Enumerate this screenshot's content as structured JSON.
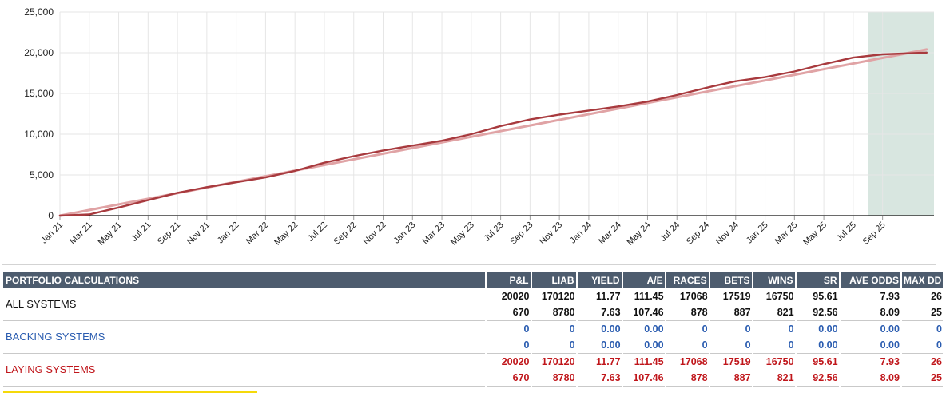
{
  "chart_data": {
    "type": "line",
    "title": "",
    "xlabel": "",
    "ylabel": "",
    "ylim": [
      0,
      25000
    ],
    "y_ticks": [
      "0",
      "5,000",
      "10,000",
      "15,000",
      "20,000",
      "25,000"
    ],
    "x_ticks": [
      "Jan 21",
      "Mar 21",
      "May 21",
      "Jul 21",
      "Sep 21",
      "Nov 21",
      "Jan 22",
      "Mar 22",
      "May 22",
      "Jul 22",
      "Sep 22",
      "Nov 22",
      "Jan 23",
      "Mar 23",
      "May 23",
      "Jul 23",
      "Sep 23",
      "Nov 23",
      "Jan 24",
      "Mar 24",
      "May 24",
      "Jul 24",
      "Sep 24",
      "Nov 24",
      "Jan 25",
      "Mar 25",
      "May 25",
      "Jul 25",
      "Sep 25"
    ],
    "grid": true,
    "shaded_region": {
      "from": "Aug 25",
      "to": "Dec 25",
      "color": "#d8e6e0"
    },
    "series": [
      {
        "color": "#a83a3e",
        "x": [
          "Jan 21",
          "Mar 21",
          "May 21",
          "Jul 21",
          "Sep 21",
          "Nov 21",
          "Jan 22",
          "Mar 22",
          "May 22",
          "Jul 22",
          "Sep 22",
          "Nov 22",
          "Jan 23",
          "Mar 23",
          "May 23",
          "Jul 23",
          "Sep 23",
          "Nov 23",
          "Jan 24",
          "Mar 24",
          "May 24",
          "Jul 24",
          "Sep 24",
          "Nov 24",
          "Jan 25",
          "Mar 25",
          "May 25",
          "Jul 25",
          "Sep 25",
          "Dec 25"
        ],
        "values": [
          0,
          150,
          1000,
          1900,
          2800,
          3500,
          4100,
          4700,
          5500,
          6500,
          7300,
          8000,
          8600,
          9200,
          10000,
          11000,
          11800,
          12400,
          12900,
          13400,
          14000,
          14800,
          15700,
          16500,
          17000,
          17700,
          18600,
          19400,
          19800,
          20020
        ]
      },
      {
        "color": "#e0a3a5",
        "x": [
          "Jan 21",
          "Dec 25"
        ],
        "values": [
          0,
          20400
        ]
      }
    ]
  },
  "table": {
    "headers": [
      "PORTFOLIO CALCULATIONS",
      "P&L",
      "LIAB",
      "YIELD",
      "A/E",
      "RACES",
      "BETS",
      "WINS",
      "SR",
      "AVE ODDS",
      "MAX DD"
    ],
    "rows": [
      {
        "label": "ALL SYSTEMS",
        "line1": [
          "20020",
          "170120",
          "11.77",
          "111.45",
          "17068",
          "17519",
          "16750",
          "95.61",
          "7.93",
          "26"
        ],
        "line2": [
          "670",
          "8780",
          "7.63",
          "107.46",
          "878",
          "887",
          "821",
          "92.56",
          "8.09",
          "25"
        ]
      },
      {
        "label": "BACKING SYSTEMS",
        "line1": [
          "0",
          "0",
          "0.00",
          "0.00",
          "0",
          "0",
          "0",
          "0.00",
          "0.00",
          "0"
        ],
        "line2": [
          "0",
          "0",
          "0.00",
          "0.00",
          "0",
          "0",
          "0",
          "0.00",
          "0.00",
          "0"
        ]
      },
      {
        "label": "LAYING SYSTEMS",
        "line1": [
          "20020",
          "170120",
          "11.77",
          "111.45",
          "17068",
          "17519",
          "16750",
          "95.61",
          "7.93",
          "26"
        ],
        "line2": [
          "670",
          "8780",
          "7.63",
          "107.46",
          "878",
          "887",
          "821",
          "92.56",
          "8.09",
          "25"
        ]
      }
    ]
  }
}
